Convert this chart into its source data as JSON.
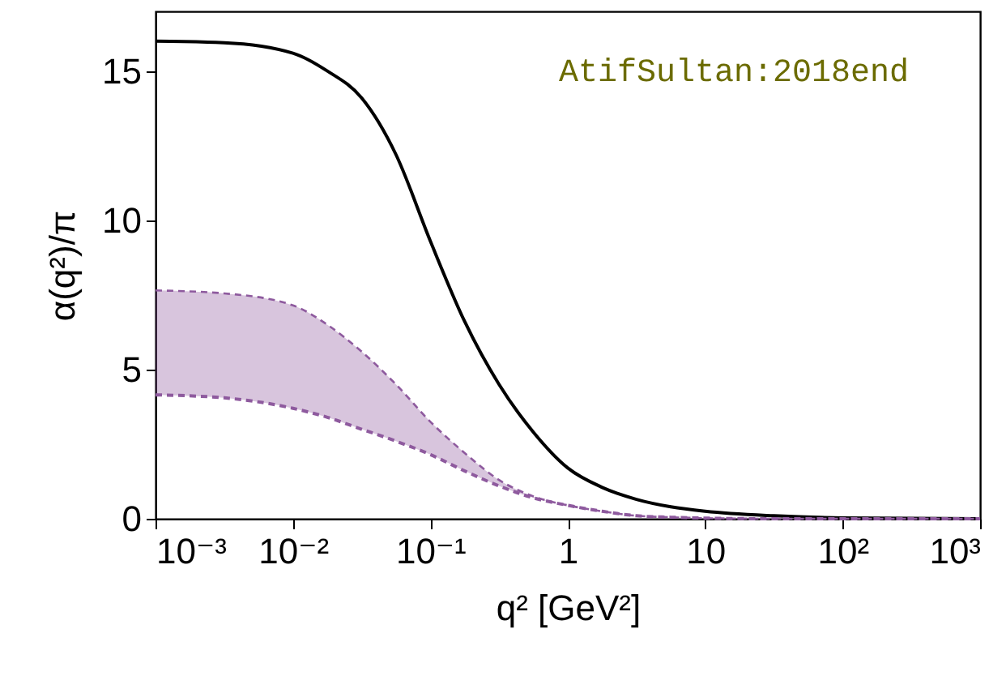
{
  "chart_data": {
    "type": "line",
    "xlabel": "q² [GeV²]",
    "ylabel": "α(q²)/π",
    "log": "x",
    "x": [
      0.001,
      0.00316,
      0.01,
      0.0178,
      0.0316,
      0.0562,
      0.1,
      0.178,
      0.316,
      0.562,
      1,
      1.78,
      3.16,
      5.62,
      10,
      31.6,
      100,
      1000
    ],
    "series": [
      {
        "color": "#000000",
        "line_style": "solid",
        "values": [
          16.0,
          15.95,
          15.6,
          15.0,
          14.1,
          12.2,
          9.3,
          6.6,
          4.5,
          2.9,
          1.7,
          1.05,
          0.65,
          0.4,
          0.25,
          0.1,
          0.03,
          0.0
        ]
      },
      {
        "color": "#8e5a9e",
        "line_style": "dashed",
        "values": [
          7.65,
          7.55,
          7.15,
          6.5,
          5.6,
          4.5,
          3.25,
          2.2,
          1.3,
          0.75,
          0.45,
          0.25,
          0.1,
          0.05,
          0.02,
          0.0,
          0.0,
          0.0
        ],
        "lower": [
          4.15,
          4.05,
          3.7,
          3.4,
          3.0,
          2.6,
          2.15,
          1.6,
          1.1,
          0.7,
          0.45,
          0.25,
          0.1,
          0.05,
          0.02,
          0.0,
          0.0,
          0.0
        ],
        "upper": [
          7.65,
          7.55,
          7.15,
          6.5,
          5.6,
          4.5,
          3.25,
          2.2,
          1.3,
          0.75,
          0.45,
          0.25,
          0.1,
          0.05,
          0.02,
          0.0,
          0.0,
          0.0
        ]
      },
      {
        "color": "#8e5a9e",
        "line_style": "dashed",
        "values": [
          4.15,
          4.05,
          3.7,
          3.4,
          3.0,
          2.6,
          2.15,
          1.6,
          1.1,
          0.7,
          0.45,
          0.25,
          0.1,
          0.05,
          0.02,
          0.0,
          0.0,
          0.0
        ]
      }
    ],
    "xlim": [
      0.001,
      1000
    ],
    "ylim": [
      0,
      17
    ],
    "xticks": [
      {
        "value": 0.001,
        "label": "10⁻³"
      },
      {
        "value": 0.01,
        "label": "10⁻²"
      },
      {
        "value": 0.1,
        "label": "10⁻¹"
      },
      1,
      10,
      {
        "value": 100,
        "label": "10²"
      },
      {
        "value": 1000,
        "label": "10³"
      }
    ],
    "yticks": [
      0,
      5,
      10,
      15
    ],
    "grid": false,
    "annotations": [
      "AtifSultan:2018end"
    ]
  }
}
